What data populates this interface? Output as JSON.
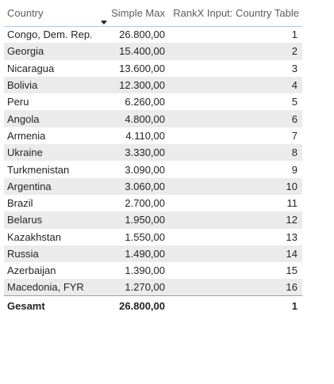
{
  "table": {
    "headers": [
      "Country",
      "Simple Max",
      "RankX Input: Country Table"
    ],
    "sort_column": "Simple Max",
    "sort_direction": "descending",
    "rows": [
      {
        "country": "Congo, Dem. Rep.",
        "simple_max": "26.800,00",
        "rank": "1"
      },
      {
        "country": "Georgia",
        "simple_max": "15.400,00",
        "rank": "2"
      },
      {
        "country": "Nicaragua",
        "simple_max": "13.600,00",
        "rank": "3"
      },
      {
        "country": "Bolivia",
        "simple_max": "12.300,00",
        "rank": "4"
      },
      {
        "country": "Peru",
        "simple_max": "6.260,00",
        "rank": "5"
      },
      {
        "country": "Angola",
        "simple_max": "4.800,00",
        "rank": "6"
      },
      {
        "country": "Armenia",
        "simple_max": "4.110,00",
        "rank": "7"
      },
      {
        "country": "Ukraine",
        "simple_max": "3.330,00",
        "rank": "8"
      },
      {
        "country": "Turkmenistan",
        "simple_max": "3.090,00",
        "rank": "9"
      },
      {
        "country": "Argentina",
        "simple_max": "3.060,00",
        "rank": "10"
      },
      {
        "country": "Brazil",
        "simple_max": "2.700,00",
        "rank": "11"
      },
      {
        "country": "Belarus",
        "simple_max": "1.950,00",
        "rank": "12"
      },
      {
        "country": "Kazakhstan",
        "simple_max": "1.550,00",
        "rank": "13"
      },
      {
        "country": "Russia",
        "simple_max": "1.490,00",
        "rank": "14"
      },
      {
        "country": "Azerbaijan",
        "simple_max": "1.390,00",
        "rank": "15"
      },
      {
        "country": "Macedonia, FYR",
        "simple_max": "1.270,00",
        "rank": "16"
      }
    ],
    "total": {
      "label": "Gesamt",
      "simple_max": "26.800,00",
      "rank": "1"
    }
  },
  "colors": {
    "alt_row": "#ebebeb",
    "header_text": "#605e5c",
    "body_text": "#252423",
    "total_border": "#7ea6d8"
  },
  "icons": {
    "sort": "sort-descending-icon"
  }
}
